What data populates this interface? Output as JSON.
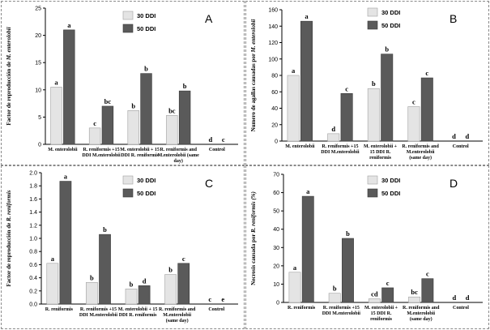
{
  "chart_data": [
    {
      "panel_label": "A",
      "type": "bar",
      "ylabel_plain": "Factor de reproducción de ",
      "ylabel_italic": "M. enterolobii",
      "ylim": [
        0,
        25
      ],
      "yticks": [
        0,
        5,
        10,
        15,
        20,
        25
      ],
      "categories": [
        [
          "M. enterolobii"
        ],
        [
          "R. reniformis +15",
          "DDI M.enterolobii"
        ],
        [
          "M. enterolobii + 15",
          "DDI R. reniformis"
        ],
        [
          "R. reniformis and",
          "M.enterolobii (same",
          "day)"
        ],
        [
          "Control"
        ]
      ],
      "series": [
        {
          "name": "30 DDI",
          "values": [
            10.5,
            3.0,
            6.2,
            5.3,
            0
          ],
          "letters": [
            "a",
            "c",
            "b",
            "bc",
            "d"
          ]
        },
        {
          "name": "50 DDI",
          "values": [
            21.0,
            7.0,
            13.0,
            9.8,
            0
          ],
          "letters": [
            "a",
            "bc",
            "b",
            "b",
            "c"
          ]
        }
      ],
      "legend": [
        "30 DDI",
        "50 DDI"
      ]
    },
    {
      "panel_label": "B",
      "type": "bar",
      "ylabel_plain": "Numero de agallas causadas por ",
      "ylabel_italic": "M. enterolobii",
      "ylim": [
        0,
        160
      ],
      "yticks": [
        0,
        20,
        40,
        60,
        80,
        100,
        120,
        140,
        160
      ],
      "categories": [
        [
          "M. enterolobii"
        ],
        [
          "R. reniformis +15",
          "DDI M.enterolobii"
        ],
        [
          "M. enterolobii +",
          "15 DDI R.",
          "reniformis"
        ],
        [
          "R. reniformis and",
          "M.enterolobii",
          "(same day)"
        ],
        [
          "Control"
        ]
      ],
      "series": [
        {
          "name": "30 DDI",
          "values": [
            80,
            9,
            64,
            42,
            0
          ],
          "letters": [
            "a",
            "d",
            "b",
            "c",
            "d"
          ]
        },
        {
          "name": "50 DDI",
          "values": [
            146,
            58,
            106,
            77,
            0
          ],
          "letters": [
            "a",
            "c",
            "b",
            "c",
            "d"
          ]
        }
      ],
      "legend": [
        "30 DDI",
        "50 DDI"
      ]
    },
    {
      "panel_label": "C",
      "type": "bar",
      "ylabel_plain": "Factor de reproducción de ",
      "ylabel_italic": "R. reniformis",
      "ylim": [
        0,
        2.0
      ],
      "yticks": [
        "0.0",
        "0.2",
        "0.4",
        "0.6",
        "0.8",
        "1.0",
        "1.2",
        "1.4",
        "1.6",
        "1.8",
        "2.0"
      ],
      "categories": [
        [
          "R. reniformis"
        ],
        [
          "R. reniformis +15",
          "DDI M.enterolobii"
        ],
        [
          "M. enterolobii + 15",
          "DDI R. reniformis"
        ],
        [
          "R. reniformis and",
          "M.enterolobii",
          "(same day)"
        ],
        [
          "Control"
        ]
      ],
      "series": [
        {
          "name": "30 DDI",
          "values": [
            0.62,
            0.33,
            0.23,
            0.45,
            0
          ],
          "letters": [
            "a",
            "b",
            "b",
            "b",
            "c"
          ]
        },
        {
          "name": "50 DDI",
          "values": [
            1.87,
            1.06,
            0.28,
            0.62,
            0
          ],
          "letters": [
            "a",
            "b",
            "d",
            "c",
            "e"
          ]
        }
      ],
      "legend": [
        "30 DDI",
        "50 DDI"
      ]
    },
    {
      "panel_label": "D",
      "type": "bar",
      "ylabel_plain": "Necrosis causada por ",
      "ylabel_italic": "R. reniformis (%)",
      "ylim": [
        0,
        70
      ],
      "yticks": [
        0,
        10,
        20,
        30,
        40,
        50,
        60,
        70
      ],
      "categories": [
        [
          "R. reniformis"
        ],
        [
          "R. reniformis +15",
          "DDI M.enterolobii"
        ],
        [
          "M. enterolobii +",
          "15 DDI R.",
          "reniformis"
        ],
        [
          "R. reniformis and",
          "M.enterolobii",
          "(same day)"
        ],
        [
          "Control"
        ]
      ],
      "series": [
        {
          "name": "30 DDI",
          "values": [
            16.5,
            5.0,
            2.0,
            3.0,
            0
          ],
          "letters": [
            "a",
            "b",
            "cd",
            "bc",
            "d"
          ]
        },
        {
          "name": "50 DDI",
          "values": [
            58.0,
            35.0,
            8.0,
            13.0,
            0
          ],
          "letters": [
            "a",
            "b",
            "c",
            "c",
            "d"
          ]
        }
      ],
      "legend": [
        "30 DDI",
        "50 DDI"
      ]
    }
  ],
  "colors": {
    "series_30": "#e4e4e4",
    "series_30_stroke": "#a0a0a0",
    "series_50": "#5a5a5a",
    "series_50_stroke": "#3a3a3a"
  }
}
